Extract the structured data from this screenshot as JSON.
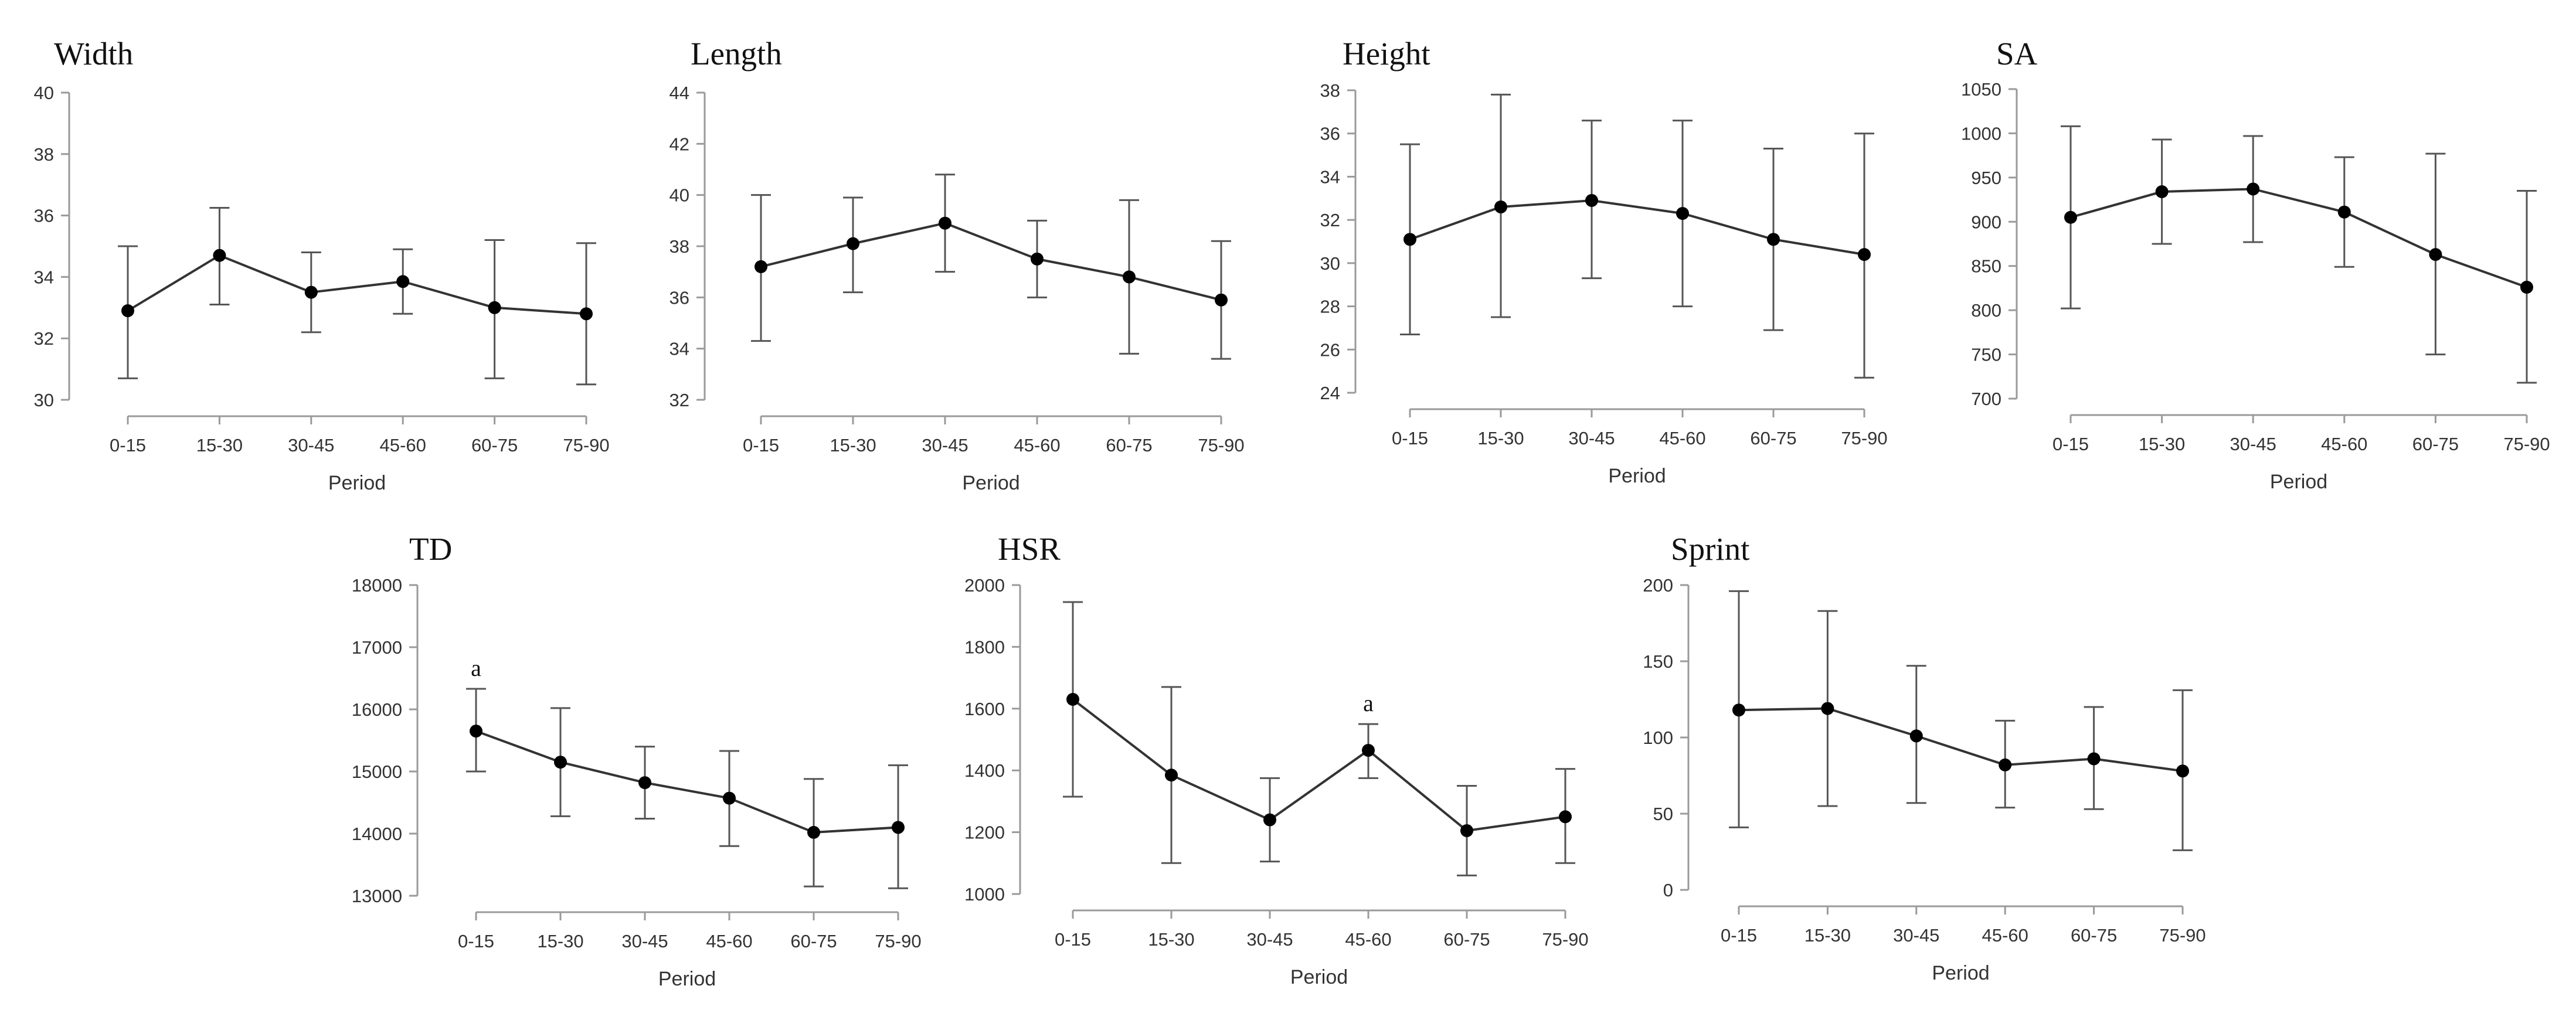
{
  "chart_data": [
    {
      "type": "line",
      "title": "Width",
      "xlabel": "Period",
      "categories": [
        "0-15",
        "15-30",
        "30-45",
        "45-60",
        "60-75",
        "75-90"
      ],
      "yticks": [
        30,
        32,
        34,
        36,
        38,
        40
      ],
      "ylim": [
        30,
        40
      ],
      "series": [
        {
          "values": [
            32.9,
            34.7,
            33.5,
            33.85,
            33.0,
            32.8
          ],
          "error_low": [
            30.7,
            33.1,
            32.2,
            32.8,
            30.7,
            30.5
          ],
          "error_high": [
            35.0,
            36.25,
            34.8,
            34.9,
            35.2,
            35.1
          ]
        }
      ],
      "annotations": []
    },
    {
      "type": "line",
      "title": "Length",
      "xlabel": "Period",
      "categories": [
        "0-15",
        "15-30",
        "30-45",
        "45-60",
        "60-75",
        "75-90"
      ],
      "yticks": [
        32,
        34,
        36,
        38,
        40,
        42,
        44
      ],
      "ylim": [
        32,
        44
      ],
      "series": [
        {
          "values": [
            37.2,
            38.1,
            38.9,
            37.5,
            36.8,
            35.9
          ],
          "error_low": [
            34.3,
            36.2,
            37.0,
            36.0,
            33.8,
            33.6
          ],
          "error_high": [
            40.0,
            39.9,
            40.8,
            39.0,
            39.8,
            38.2
          ]
        }
      ],
      "annotations": []
    },
    {
      "type": "line",
      "title": "Height",
      "xlabel": "Period",
      "categories": [
        "0-15",
        "15-30",
        "30-45",
        "45-60",
        "60-75",
        "75-90"
      ],
      "yticks": [
        24,
        26,
        28,
        30,
        32,
        34,
        36,
        38
      ],
      "ylim": [
        24,
        38
      ],
      "series": [
        {
          "values": [
            31.1,
            32.6,
            32.9,
            32.3,
            31.1,
            30.4
          ],
          "error_low": [
            26.7,
            27.5,
            29.3,
            28.0,
            26.9,
            24.7
          ],
          "error_high": [
            35.5,
            37.8,
            36.6,
            36.6,
            35.3,
            36.0
          ]
        }
      ],
      "annotations": []
    },
    {
      "type": "line",
      "title": "SA",
      "xlabel": "Period",
      "categories": [
        "0-15",
        "15-30",
        "30-45",
        "45-60",
        "60-75",
        "75-90"
      ],
      "yticks": [
        700,
        750,
        800,
        850,
        900,
        950,
        1000,
        1050
      ],
      "ylim": [
        700,
        1050
      ],
      "series": [
        {
          "values": [
            905,
            934,
            937,
            911,
            863,
            826
          ],
          "error_low": [
            802,
            875,
            877,
            849,
            750,
            718
          ],
          "error_high": [
            1008,
            993,
            997,
            973,
            977,
            935
          ]
        }
      ],
      "annotations": []
    },
    {
      "type": "line",
      "title": "TD",
      "xlabel": "Period",
      "categories": [
        "0-15",
        "15-30",
        "30-45",
        "45-60",
        "60-75",
        "75-90"
      ],
      "yticks": [
        13000,
        14000,
        15000,
        16000,
        17000,
        18000
      ],
      "ylim": [
        13000,
        18000
      ],
      "series": [
        {
          "values": [
            15650,
            15150,
            14820,
            14570,
            14020,
            14100
          ],
          "error_low": [
            15000,
            14280,
            14240,
            13800,
            13150,
            13120
          ],
          "error_high": [
            16330,
            16020,
            15400,
            15330,
            14880,
            15100
          ]
        }
      ],
      "annotations": [
        {
          "text": "a",
          "index": 0
        }
      ]
    },
    {
      "type": "line",
      "title": "HSR",
      "xlabel": "Period",
      "categories": [
        "0-15",
        "15-30",
        "30-45",
        "45-60",
        "60-75",
        "75-90"
      ],
      "yticks": [
        1000,
        1200,
        1400,
        1600,
        1800,
        2000
      ],
      "ylim": [
        1000,
        2000
      ],
      "series": [
        {
          "values": [
            1630,
            1385,
            1240,
            1465,
            1205,
            1250
          ],
          "error_low": [
            1315,
            1100,
            1105,
            1375,
            1060,
            1100
          ],
          "error_high": [
            1945,
            1670,
            1375,
            1550,
            1350,
            1405
          ]
        }
      ],
      "annotations": [
        {
          "text": "a",
          "index": 3
        }
      ]
    },
    {
      "type": "line",
      "title": "Sprint",
      "xlabel": "Period",
      "categories": [
        "0-15",
        "15-30",
        "30-45",
        "45-60",
        "60-75",
        "75-90"
      ],
      "yticks": [
        0,
        50,
        100,
        150,
        200
      ],
      "ylim": [
        0,
        200
      ],
      "series": [
        {
          "values": [
            118,
            119,
            101,
            82,
            86,
            78
          ],
          "error_low": [
            41,
            55,
            57,
            54,
            53,
            26
          ],
          "error_high": [
            196,
            183,
            147,
            111,
            120,
            131
          ]
        }
      ],
      "annotations": []
    }
  ]
}
